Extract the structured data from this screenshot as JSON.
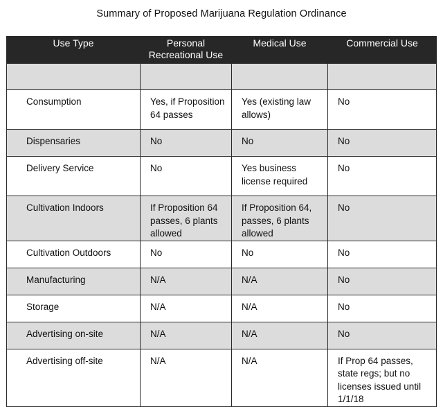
{
  "title": "Summary of Proposed Marijuana Regulation Ordinance",
  "headers": [
    "Use Type",
    "Personal Recreational Use",
    "Medical Use",
    "Commercial Use"
  ],
  "rows": [
    {
      "use_type": "",
      "personal": "",
      "medical": "",
      "commercial": ""
    },
    {
      "use_type": "Consumption",
      "personal": "Yes, if Proposition 64 passes",
      "medical": "Yes (existing law allows)",
      "commercial": "No"
    },
    {
      "use_type": "Dispensaries",
      "personal": "No",
      "medical": "No",
      "commercial": "No"
    },
    {
      "use_type": "Delivery Service",
      "personal": "No",
      "medical": "Yes business license required",
      "commercial": "No"
    },
    {
      "use_type": "Cultivation Indoors",
      "personal": "If Proposition 64 passes, 6 plants allowed",
      "medical": "If Proposition 64, passes, 6 plants allowed",
      "commercial": "No"
    },
    {
      "use_type": "Cultivation Outdoors",
      "personal": "No",
      "medical": "No",
      "commercial": "No"
    },
    {
      "use_type": "Manufacturing",
      "personal": "N/A",
      "medical": "N/A",
      "commercial": "No"
    },
    {
      "use_type": "Storage",
      "personal": "N/A",
      "medical": "N/A",
      "commercial": "No"
    },
    {
      "use_type": "Advertising on-site",
      "personal": "N/A",
      "medical": "N/A",
      "commercial": "No"
    },
    {
      "use_type": "Advertising off-site",
      "personal": "N/A",
      "medical": "N/A",
      "commercial": "If Prop 64 passes, state regs; but no licenses issued until 1/1/18"
    }
  ]
}
